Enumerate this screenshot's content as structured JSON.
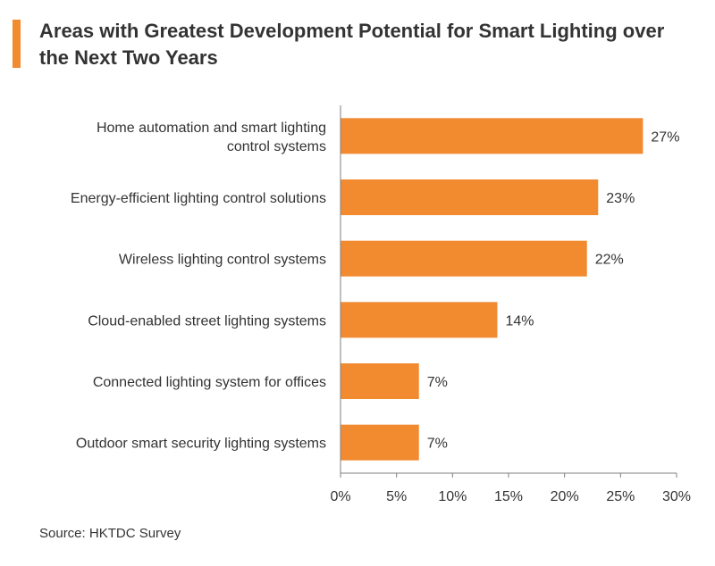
{
  "colors": {
    "accent": "#F28A30",
    "bar": "#F28A30",
    "axis": "#7F7F7F",
    "text": "#333333"
  },
  "source": "Source: HKTDC Survey",
  "chart_data": {
    "type": "bar",
    "orientation": "horizontal",
    "title": "Areas with Greatest Development Potential for Smart Lighting over the Next Two Years",
    "categories": [
      [
        "Home automation and smart lighting",
        "control systems"
      ],
      [
        "Energy-efficient lighting control solutions"
      ],
      [
        "Wireless lighting control systems"
      ],
      [
        "Cloud-enabled street lighting systems"
      ],
      [
        "Connected lighting system for offices"
      ],
      [
        "Outdoor smart security lighting systems"
      ]
    ],
    "values": [
      27,
      23,
      22,
      14,
      7,
      7
    ],
    "value_labels": [
      "27%",
      "23%",
      "22%",
      "14%",
      "7%",
      "7%"
    ],
    "xlim": [
      0,
      30
    ],
    "xticks": [
      0,
      5,
      10,
      15,
      20,
      25,
      30
    ],
    "xtick_labels": [
      "0%",
      "5%",
      "10%",
      "15%",
      "20%",
      "25%",
      "30%"
    ],
    "xlabel": "",
    "ylabel": "",
    "grid": false,
    "legend": "none"
  }
}
